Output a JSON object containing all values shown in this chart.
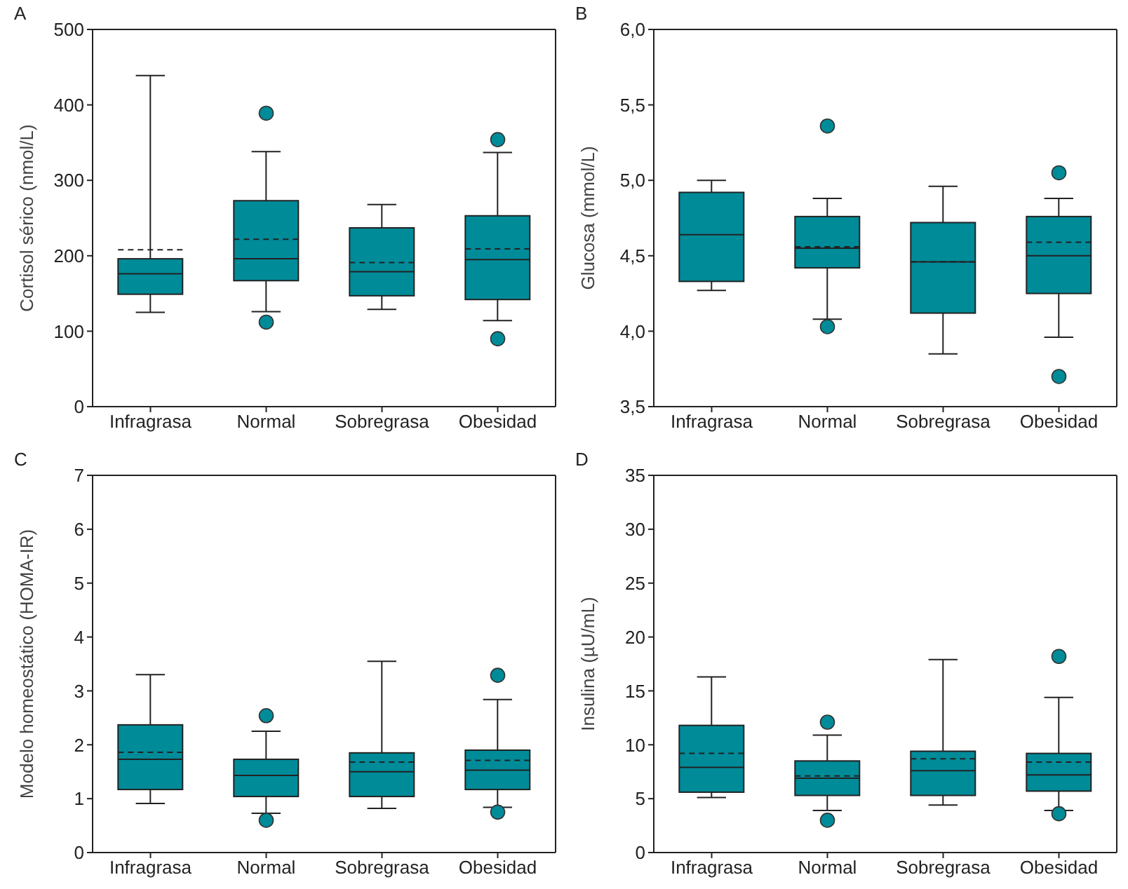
{
  "chart_data": [
    {
      "type": "box",
      "title": "A",
      "ylabel": "Cortisol sérico (nmol/L)",
      "categories": [
        "Infragrasa",
        "Normal",
        "Sobregrasa",
        "Obesidad"
      ],
      "color": "#008b99",
      "ylim": [
        0,
        500
      ],
      "yticks": [
        0,
        100,
        200,
        300,
        400,
        500
      ],
      "boxes": [
        {
          "low": 125,
          "q1": 149,
          "median": 176,
          "q3": 196,
          "high": 439,
          "mean": 208
        },
        {
          "low": 126,
          "q1": 167,
          "median": 196,
          "q3": 273,
          "high": 338,
          "mean": 222,
          "outliers": [
            389,
            112
          ]
        },
        {
          "low": 129,
          "q1": 147,
          "median": 179,
          "q3": 237,
          "high": 268,
          "mean": 191
        },
        {
          "low": 114,
          "q1": 142,
          "median": 195,
          "q3": 253,
          "high": 337,
          "mean": 209,
          "outliers": [
            354,
            90
          ]
        }
      ]
    },
    {
      "type": "box",
      "title": "B",
      "ylabel": "Glucosa (mmol/L)",
      "categories": [
        "Infragrasa",
        "Normal",
        "Sobregrasa",
        "Obesidad"
      ],
      "color": "#008b99",
      "ylim": [
        3.5,
        6.0
      ],
      "yticks": [
        {
          "value": 3.5,
          "label": "3,5"
        },
        {
          "value": 4.0,
          "label": "4,0"
        },
        {
          "value": 4.5,
          "label": "4,5"
        },
        {
          "value": 5.0,
          "label": "5,0"
        },
        {
          "value": 5.5,
          "label": "5,5"
        },
        {
          "value": 6.0,
          "label": "6,0"
        }
      ],
      "boxes": [
        {
          "low": 4.27,
          "q1": 4.33,
          "median": 4.64,
          "q3": 4.92,
          "high": 5.0
        },
        {
          "low": 4.08,
          "q1": 4.42,
          "median": 4.55,
          "q3": 4.76,
          "high": 4.88,
          "mean": 4.56,
          "outliers": [
            5.36,
            4.03
          ]
        },
        {
          "low": 3.85,
          "q1": 4.12,
          "median": 4.46,
          "q3": 4.72,
          "high": 4.96,
          "mean": 4.46
        },
        {
          "low": 3.96,
          "q1": 4.25,
          "median": 4.5,
          "q3": 4.76,
          "high": 4.88,
          "mean": 4.59,
          "outliers": [
            5.05,
            3.7
          ]
        }
      ]
    },
    {
      "type": "box",
      "title": "C",
      "ylabel": "Modelo homeostático (HOMA-IR)",
      "categories": [
        "Infragrasa",
        "Normal",
        "Sobregrasa",
        "Obesidad"
      ],
      "color": "#008b99",
      "ylim": [
        0,
        7
      ],
      "yticks": [
        0,
        1,
        2,
        3,
        4,
        5,
        6,
        7
      ],
      "boxes": [
        {
          "low": 0.91,
          "q1": 1.17,
          "median": 1.73,
          "q3": 2.37,
          "high": 3.3,
          "mean": 1.86
        },
        {
          "low": 0.73,
          "q1": 1.04,
          "median": 1.43,
          "q3": 1.73,
          "high": 2.25,
          "outliers": [
            2.54,
            0.6
          ]
        },
        {
          "low": 0.82,
          "q1": 1.04,
          "median": 1.5,
          "q3": 1.85,
          "high": 3.55,
          "mean": 1.68
        },
        {
          "low": 0.84,
          "q1": 1.17,
          "median": 1.53,
          "q3": 1.9,
          "high": 2.84,
          "mean": 1.71,
          "outliers": [
            3.29,
            0.75
          ]
        }
      ]
    },
    {
      "type": "box",
      "title": "D",
      "ylabel": "Insulina (µU/mL)",
      "categories": [
        "Infragrasa",
        "Normal",
        "Sobregrasa",
        "Obesidad"
      ],
      "color": "#008b99",
      "ylim": [
        0,
        35
      ],
      "yticks": [
        0,
        5,
        10,
        15,
        20,
        25,
        30,
        35
      ],
      "boxes": [
        {
          "low": 5.1,
          "q1": 5.6,
          "median": 7.9,
          "q3": 11.8,
          "high": 16.3,
          "mean": 9.2
        },
        {
          "low": 3.9,
          "q1": 5.3,
          "median": 6.9,
          "q3": 8.5,
          "high": 10.9,
          "mean": 7.1,
          "outliers": [
            12.1,
            3.0
          ]
        },
        {
          "low": 4.4,
          "q1": 5.3,
          "median": 7.6,
          "q3": 9.4,
          "high": 17.9,
          "mean": 8.7
        },
        {
          "low": 3.9,
          "q1": 5.7,
          "median": 7.2,
          "q3": 9.2,
          "high": 14.4,
          "mean": 8.4,
          "outliers": [
            18.2,
            3.6
          ]
        }
      ]
    }
  ]
}
